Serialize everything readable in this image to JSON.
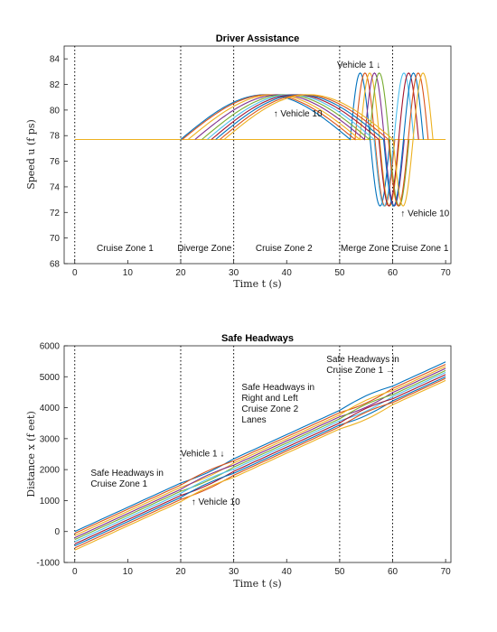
{
  "chart_data": [
    {
      "type": "line",
      "title": "Driver Assistance",
      "xlabel": "Time t (s)",
      "ylabel": "Speed u (f ps)",
      "xlim": [
        -2,
        71
      ],
      "ylim": [
        68,
        85
      ],
      "xticks": [
        0,
        10,
        20,
        30,
        40,
        50,
        60,
        70
      ],
      "yticks": [
        68,
        70,
        72,
        74,
        76,
        78,
        80,
        82,
        84
      ],
      "vertical_lines": [
        0,
        20,
        30,
        50,
        60
      ],
      "zones": [
        {
          "label": "Cruise Zone 1",
          "x": 9.5,
          "y": 69
        },
        {
          "label": "Diverge Zone",
          "x": 24.5,
          "y": 69
        },
        {
          "label": "Cruise Zone 2",
          "x": 39.5,
          "y": 69
        },
        {
          "label": "Merge Zone",
          "x": 54.8,
          "y": 69
        },
        {
          "label": "Cruise Zone 1",
          "x": 65.2,
          "y": 69
        }
      ],
      "annotations": [
        {
          "text": "Vehicle 1 ↓",
          "x": 49.5,
          "y": 83.3
        },
        {
          "text": "↑ Vehicle 10",
          "x": 37.5,
          "y": 79.5
        },
        {
          "text": "↑ Vehicle 10",
          "x": 61.5,
          "y": 71.7
        }
      ],
      "baseline_speed": 77.7,
      "colors": [
        "#0072BD",
        "#D95319",
        "#EDB120",
        "#7E2F8E",
        "#77AC30",
        "#4DBEEE",
        "#A2142F"
      ],
      "series": [
        {
          "name": "Vehicle 1",
          "diverge_start": 20.0,
          "merge_end": 59.5,
          "oscillation": [
            52.0,
            59.5,
            55.6,
            58.2
          ],
          "lane": "left"
        },
        {
          "name": "Vehicle 2",
          "diverge_start": 20.3,
          "merge_end": 60.4,
          "oscillation": [
            52.9,
            60.4,
            56.5,
            59.1
          ],
          "lane": "left"
        },
        {
          "name": "Vehicle 3",
          "diverge_start": 21.4,
          "merge_end": 61.3,
          "oscillation": [
            53.8,
            61.3,
            57.4,
            60.0
          ],
          "lane": "left"
        },
        {
          "name": "Vehicle 4",
          "diverge_start": 22.7,
          "merge_end": 62.2,
          "oscillation": [
            54.7,
            62.2,
            58.3,
            60.9
          ],
          "lane": "left"
        },
        {
          "name": "Vehicle 5",
          "diverge_start": 24.0,
          "merge_end": 63.1,
          "oscillation": [
            55.6,
            63.1,
            59.2,
            61.8
          ],
          "lane": "left"
        },
        {
          "name": "Vehicle 6",
          "diverge_start": 25.0,
          "merge_end": 64.0,
          "oscillation": [
            56.5,
            64.0,
            60.1,
            62.7
          ],
          "lane": "right"
        },
        {
          "name": "Vehicle 7",
          "diverge_start": 25.8,
          "merge_end": 64.9,
          "oscillation": [
            57.4,
            64.9,
            61.0,
            63.6
          ],
          "lane": "right"
        },
        {
          "name": "Vehicle 8",
          "diverge_start": 26.6,
          "merge_end": 65.8,
          "oscillation": [
            58.3,
            65.8,
            61.9,
            64.5
          ],
          "lane": "right"
        },
        {
          "name": "Vehicle 9",
          "diverge_start": 27.4,
          "merge_end": 66.7,
          "oscillation": [
            59.2,
            66.7,
            62.8,
            65.4
          ],
          "lane": "right"
        },
        {
          "name": "Vehicle 10",
          "diverge_start": 28.2,
          "merge_end": 67.6,
          "oscillation": [
            60.1,
            67.6,
            63.7,
            66.3
          ],
          "lane": "right"
        }
      ]
    },
    {
      "type": "line",
      "title": "Safe Headways",
      "xlabel": "Time t (s)",
      "ylabel": "Distance x (f eet)",
      "xlim": [
        -2,
        71
      ],
      "ylim": [
        -1000,
        6000
      ],
      "xticks": [
        0,
        10,
        20,
        30,
        40,
        50,
        60,
        70
      ],
      "yticks": [
        -1000,
        0,
        1000,
        2000,
        3000,
        4000,
        5000,
        6000
      ],
      "vertical_lines": [
        0,
        20,
        30,
        50,
        60
      ],
      "annotations": [
        {
          "lines": [
            "Safe Headways in",
            "Cruise Zone 1"
          ],
          "x": 3,
          "y": 1800
        },
        {
          "lines": [
            "Vehicle 1 ↓"
          ],
          "x": 20,
          "y": 2420
        },
        {
          "lines": [
            "↑ Vehicle 10"
          ],
          "x": 22,
          "y": 860
        },
        {
          "lines": [
            "Safe Headways in",
            "Right and Left",
            "Cruise Zone 2",
            "Lanes"
          ],
          "x": 31.5,
          "y": 4570
        },
        {
          "lines": [
            "Safe Headways in",
            "Cruise Zone 1 →"
          ],
          "x": 47.5,
          "y": 5480
        }
      ],
      "series": [
        {
          "name": "Vehicle 1",
          "start": 0,
          "end": 5480
        },
        {
          "name": "Vehicle 2",
          "start": -60,
          "end": 5400
        },
        {
          "name": "Vehicle 3",
          "start": -130,
          "end": 5330
        },
        {
          "name": "Vehicle 4",
          "start": -200,
          "end": 5270
        },
        {
          "name": "Vehicle 5",
          "start": -260,
          "end": 5200
        },
        {
          "name": "Vehicle 6",
          "start": -330,
          "end": 5140
        },
        {
          "name": "Vehicle 7",
          "start": -400,
          "end": 5070
        },
        {
          "name": "Vehicle 8",
          "start": -460,
          "end": 5000
        },
        {
          "name": "Vehicle 9",
          "start": -530,
          "end": 4950
        },
        {
          "name": "Vehicle 10",
          "start": -600,
          "end": 4880
        }
      ]
    }
  ]
}
